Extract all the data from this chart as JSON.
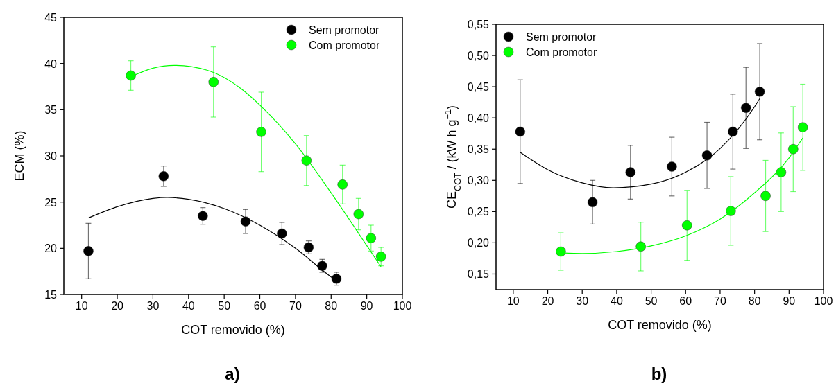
{
  "chart_data": [
    {
      "type": "scatter",
      "xlabel": "COT removido (%)",
      "ylabel": "ECM (%)",
      "annotations": [
        "a)"
      ],
      "xlim": [
        5,
        100
      ],
      "xticks": [
        10,
        20,
        30,
        40,
        50,
        60,
        70,
        80,
        90,
        100
      ],
      "ylim": [
        15,
        45
      ],
      "yticks": [
        15,
        20,
        25,
        30,
        35,
        40,
        45
      ],
      "legend": "top right",
      "marker": "circle",
      "grid": false,
      "series": [
        {
          "name": "Sem promotor",
          "color": "#000000",
          "x": [
            11.9,
            33,
            44,
            56,
            66.2,
            73.7,
            77.5,
            81.5
          ],
          "values": [
            19.7,
            27.8,
            23.5,
            22.9,
            21.6,
            20.1,
            18.1,
            16.7
          ],
          "errors": [
            3.0,
            1.1,
            0.9,
            1.3,
            1.2,
            0.7,
            0.7,
            0.7
          ]
        },
        {
          "name": "Com promotor",
          "color": "#00ff00",
          "x": [
            23.8,
            47,
            60.4,
            73.1,
            83.2,
            87.7,
            91.2,
            94
          ],
          "values": [
            38.7,
            38,
            32.6,
            29.5,
            26.9,
            23.7,
            21.1,
            19.1
          ],
          "errors": [
            1.6,
            3.8,
            4.3,
            2.7,
            2.1,
            1.7,
            1.4,
            1.0
          ]
        },
        {
          "type": "line",
          "marker": "none",
          "color": "#000000",
          "x": [
            12,
            20,
            30,
            34,
            40,
            50,
            60,
            70,
            80,
            81.5
          ],
          "values": [
            23.3,
            24.5,
            25.4,
            25.5,
            25.3,
            24.3,
            22.5,
            20.0,
            16.9,
            16.5
          ]
        },
        {
          "type": "line",
          "marker": "none",
          "color": "#00ff00",
          "x": [
            24,
            30,
            36,
            45,
            55,
            60,
            70,
            80,
            90,
            94
          ],
          "values": [
            38.6,
            39.5,
            39.8,
            39.3,
            37.2,
            35.5,
            31.3,
            26.0,
            20.3,
            18.0
          ]
        }
      ]
    },
    {
      "type": "scatter",
      "xlabel": "COT removido (%)",
      "ylabel": "CE$_{COT}$ / (kW h g$^{−1}$)",
      "annotations": [
        "b)"
      ],
      "xlim": [
        5,
        100
      ],
      "xticks": [
        10,
        20,
        30,
        40,
        50,
        60,
        70,
        80,
        90,
        100
      ],
      "ylim": [
        0.125,
        0.55
      ],
      "yticks": [
        {
          "value": 0.15,
          "label": "0,15"
        },
        {
          "value": 0.2,
          "label": "0,20"
        },
        {
          "value": 0.25,
          "label": "0,25"
        },
        {
          "value": 0.3,
          "label": "0,30"
        },
        {
          "value": 0.35,
          "label": "0,35"
        },
        {
          "value": 0.4,
          "label": "0,40"
        },
        {
          "value": 0.45,
          "label": "0,45"
        },
        {
          "value": 0.5,
          "label": "0,50"
        },
        {
          "value": 0.55,
          "label": "0,55"
        }
      ],
      "legend": "top left",
      "marker": "circle",
      "grid": false,
      "series": [
        {
          "name": "Sem promotor",
          "color": "#000000",
          "x": [
            12,
            33,
            44,
            56,
            66.2,
            73.7,
            77.5,
            81.5
          ],
          "values": [
            0.378,
            0.265,
            0.313,
            0.322,
            0.34,
            0.378,
            0.416,
            0.442
          ],
          "errors": [
            0.083,
            0.035,
            0.043,
            0.047,
            0.053,
            0.06,
            0.065,
            0.077
          ]
        },
        {
          "name": "Com promotor",
          "color": "#00ff00",
          "x": [
            23.8,
            47,
            60.4,
            73.1,
            83.2,
            87.7,
            91.2,
            94
          ],
          "values": [
            0.186,
            0.194,
            0.228,
            0.251,
            0.275,
            0.313,
            0.35,
            0.385
          ],
          "errors": [
            0.03,
            0.039,
            0.056,
            0.055,
            0.057,
            0.063,
            0.068,
            0.069
          ]
        },
        {
          "type": "line",
          "marker": "none",
          "color": "#000000",
          "x": [
            12,
            20,
            30,
            39,
            50,
            60,
            70,
            80,
            81.5
          ],
          "values": [
            0.345,
            0.317,
            0.296,
            0.288,
            0.294,
            0.313,
            0.351,
            0.418,
            0.431
          ]
        },
        {
          "type": "line",
          "marker": "none",
          "color": "#00ff00",
          "x": [
            24,
            30,
            40,
            50,
            60,
            70,
            80,
            90,
            94
          ],
          "values": [
            0.184,
            0.183,
            0.186,
            0.195,
            0.211,
            0.238,
            0.28,
            0.336,
            0.368
          ]
        }
      ]
    }
  ]
}
